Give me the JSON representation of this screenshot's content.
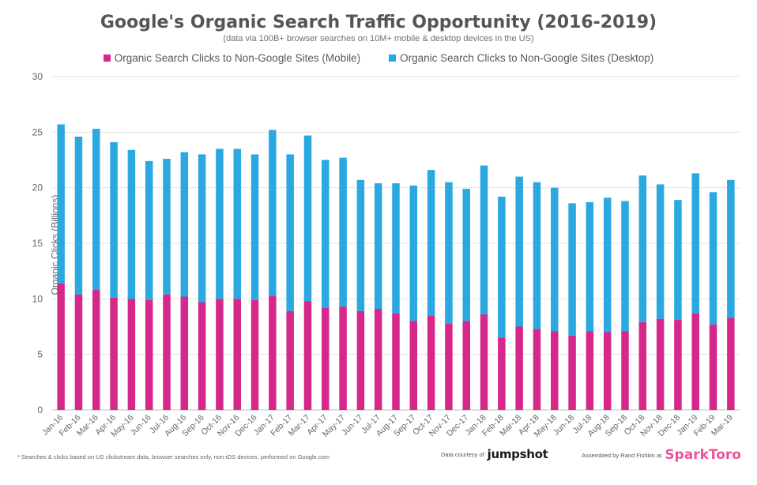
{
  "chart_data": {
    "type": "bar",
    "stacked": true,
    "title": "Google's Organic Search Traffic Opportunity (2016-2019)",
    "subtitle": "(data via 100B+ browser searches on 10M+ mobile & desktop devices in the US)",
    "ylabel": "Organic Clicks (Billions)",
    "ylim": [
      0,
      30
    ],
    "yticks": [
      0,
      5,
      10,
      15,
      20,
      25,
      30
    ],
    "grid": true,
    "legend_position": "top",
    "categories": [
      "Jan-16",
      "Feb-16",
      "Mar-16",
      "Apr-16",
      "May-16",
      "Jun-16",
      "Jul-16",
      "Aug-16",
      "Sep-16",
      "Oct-16",
      "Nov-16",
      "Dec-16",
      "Jan-17",
      "Feb-17",
      "Mar-17",
      "Apr-17",
      "May-17",
      "Jun-17",
      "Jul-17",
      "Aug-17",
      "Sep-17",
      "Oct-17",
      "Nov-17",
      "Dec-17",
      "Jan-18",
      "Feb-18",
      "Mar-18",
      "Apr-18",
      "May-18",
      "Jun-18",
      "Jul-18",
      "Aug-18",
      "Sep-18",
      "Oct-18",
      "Nov-18",
      "Dec-18",
      "Jan-19",
      "Feb-19",
      "Mar-19"
    ],
    "series": [
      {
        "name": "Organic Search Clicks to Non-Google Sites (Mobile)",
        "color": "#d6278a",
        "values": [
          11.4,
          10.4,
          10.8,
          10.1,
          10.0,
          9.9,
          10.4,
          10.2,
          9.7,
          10.0,
          10.0,
          9.9,
          10.3,
          8.9,
          9.8,
          9.2,
          9.3,
          8.9,
          9.1,
          8.7,
          8.0,
          8.5,
          7.8,
          8.0,
          8.6,
          6.5,
          7.5,
          7.3,
          7.1,
          6.7,
          7.1,
          7.0,
          7.1,
          7.9,
          8.2,
          8.1,
          8.7,
          7.7,
          8.3
        ]
      },
      {
        "name": "Organic Search Clicks to Non-Google Sites (Desktop)",
        "color": "#2aa8df",
        "values": [
          14.3,
          14.2,
          14.5,
          14.0,
          13.4,
          12.5,
          12.2,
          13.0,
          13.3,
          13.5,
          13.5,
          13.1,
          14.9,
          14.1,
          14.9,
          13.3,
          13.4,
          11.8,
          11.3,
          11.7,
          12.2,
          13.1,
          12.7,
          11.9,
          13.4,
          12.7,
          13.5,
          13.2,
          12.9,
          11.9,
          11.6,
          12.1,
          11.7,
          13.2,
          12.1,
          10.8,
          12.6,
          11.9,
          12.4
        ]
      }
    ]
  },
  "footer": {
    "note": "* Searches & clicks based on US clickstream data, browser searches only, non-iOS devices, performed on Google.com",
    "data_courtesy_label": "Data courtesy of",
    "data_courtesy_brand": "jumpshot",
    "assembled_label": "Assembled by Rand Fishkin at",
    "assembled_brand": "SparkToro"
  }
}
